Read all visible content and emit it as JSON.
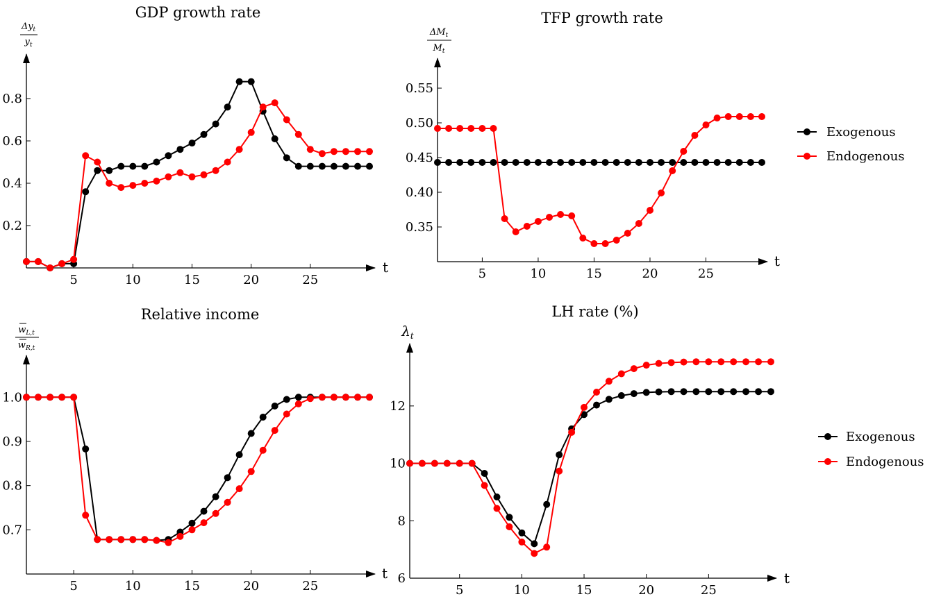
{
  "chart_data": [
    {
      "id": "gdp",
      "type": "line",
      "title": "GDP growth rate",
      "ylabel_num": "Δy",
      "ylabel_num_sub": "t",
      "ylabel_den": "y",
      "ylabel_den_sub": "t",
      "xlabel": "t",
      "xlim": [
        1,
        30
      ],
      "ylim": [
        0,
        1
      ],
      "xticks": [
        5,
        10,
        15,
        20,
        25
      ],
      "yticks": [
        0.2,
        0.4,
        0.6,
        0.8
      ],
      "ytick_labels": [
        "0.2",
        "0.4",
        "0.6",
        "0.8"
      ],
      "x": [
        1,
        2,
        3,
        4,
        5,
        6,
        7,
        8,
        9,
        10,
        11,
        12,
        13,
        14,
        15,
        16,
        17,
        18,
        19,
        20,
        21,
        22,
        23,
        24,
        25,
        26,
        27,
        28,
        29,
        30
      ],
      "series": [
        {
          "name": "Exogenous",
          "color": "#000000",
          "values": [
            0.03,
            0.03,
            0.0,
            0.02,
            0.02,
            0.36,
            0.46,
            0.46,
            0.48,
            0.48,
            0.48,
            0.5,
            0.53,
            0.56,
            0.59,
            0.63,
            0.68,
            0.76,
            0.88,
            0.88,
            0.74,
            0.61,
            0.52,
            0.48,
            0.48,
            0.48,
            0.48,
            0.48,
            0.48,
            0.48
          ]
        },
        {
          "name": "Endogenous",
          "color": "#ff0000",
          "values": [
            0.03,
            0.03,
            0.0,
            0.02,
            0.04,
            0.53,
            0.5,
            0.4,
            0.38,
            0.39,
            0.4,
            0.41,
            0.43,
            0.45,
            0.43,
            0.44,
            0.46,
            0.5,
            0.56,
            0.64,
            0.76,
            0.78,
            0.7,
            0.63,
            0.56,
            0.54,
            0.55,
            0.55,
            0.55,
            0.55
          ]
        }
      ]
    },
    {
      "id": "tfp",
      "type": "line",
      "title": "TFP growth rate",
      "ylabel_num": "ΔM",
      "ylabel_num_sub": "t",
      "ylabel_den": "M",
      "ylabel_den_sub": "t",
      "xlabel": "t",
      "xlim": [
        1,
        30
      ],
      "ylim": [
        0.3,
        0.59
      ],
      "xticks": [
        5,
        10,
        15,
        20,
        25
      ],
      "yticks": [
        0.35,
        0.4,
        0.45,
        0.5,
        0.55
      ],
      "ytick_labels": [
        "0.35",
        "0.40",
        "0.45",
        "0.50",
        "0.55"
      ],
      "x": [
        1,
        2,
        3,
        4,
        5,
        6,
        7,
        8,
        9,
        10,
        11,
        12,
        13,
        14,
        15,
        16,
        17,
        18,
        19,
        20,
        21,
        22,
        23,
        24,
        25,
        26,
        27,
        28,
        29,
        30
      ],
      "series": [
        {
          "name": "Exogenous",
          "color": "#000000",
          "values": [
            0.443,
            0.443,
            0.443,
            0.443,
            0.443,
            0.443,
            0.443,
            0.443,
            0.443,
            0.443,
            0.443,
            0.443,
            0.443,
            0.443,
            0.443,
            0.443,
            0.443,
            0.443,
            0.443,
            0.443,
            0.443,
            0.443,
            0.443,
            0.443,
            0.443,
            0.443,
            0.443,
            0.443,
            0.443,
            0.443
          ]
        },
        {
          "name": "Endogenous",
          "color": "#ff0000",
          "values": [
            0.492,
            0.492,
            0.492,
            0.492,
            0.492,
            0.492,
            0.362,
            0.343,
            0.351,
            0.358,
            0.364,
            0.368,
            0.366,
            0.334,
            0.326,
            0.326,
            0.331,
            0.341,
            0.355,
            0.374,
            0.399,
            0.431,
            0.459,
            0.482,
            0.497,
            0.507,
            0.509,
            0.509,
            0.509,
            0.509
          ]
        }
      ]
    },
    {
      "id": "relinc",
      "type": "line",
      "title": "Relative income",
      "ylabel_num": "w",
      "ylabel_num_sub": "L,t",
      "ylabel_den": "w",
      "ylabel_den_sub": "R,t",
      "xlabel": "t",
      "xlim": [
        1,
        30
      ],
      "ylim": [
        0.6,
        1.09
      ],
      "xticks": [
        5,
        10,
        15,
        20,
        25
      ],
      "yticks": [
        0.7,
        0.8,
        0.9,
        1.0
      ],
      "ytick_labels": [
        "0.7",
        "0.8",
        "0.9",
        "1.0"
      ],
      "x": [
        1,
        2,
        3,
        4,
        5,
        6,
        7,
        8,
        9,
        10,
        11,
        12,
        13,
        14,
        15,
        16,
        17,
        18,
        19,
        20,
        21,
        22,
        23,
        24,
        25,
        26,
        27,
        28,
        29,
        30
      ],
      "series": [
        {
          "name": "Exogenous",
          "color": "#000000",
          "values": [
            1.0,
            1.0,
            1.0,
            1.0,
            1.0,
            0.883,
            0.678,
            0.678,
            0.678,
            0.678,
            0.678,
            0.676,
            0.678,
            0.695,
            0.715,
            0.742,
            0.775,
            0.818,
            0.87,
            0.918,
            0.955,
            0.98,
            0.995,
            1.0,
            1.0,
            1.0,
            1.0,
            1.0,
            1.0,
            1.0
          ]
        },
        {
          "name": "Endogenous",
          "color": "#ff0000",
          "values": [
            1.0,
            1.0,
            1.0,
            1.0,
            1.0,
            0.733,
            0.678,
            0.678,
            0.678,
            0.678,
            0.678,
            0.676,
            0.671,
            0.685,
            0.7,
            0.716,
            0.737,
            0.762,
            0.793,
            0.832,
            0.88,
            0.925,
            0.962,
            0.985,
            0.997,
            1.0,
            1.0,
            1.0,
            1.0,
            1.0
          ]
        }
      ]
    },
    {
      "id": "lh",
      "type": "line",
      "title": "LH rate (%)",
      "ylabel_main": "λ",
      "ylabel_main_sub": "t",
      "xlabel": "t",
      "xlim": [
        1,
        30
      ],
      "ylim": [
        6,
        14.1
      ],
      "xticks": [
        5,
        10,
        15,
        20,
        25
      ],
      "yticks": [
        6,
        8,
        10,
        12
      ],
      "ytick_labels": [
        "6",
        "8",
        "10",
        "12"
      ],
      "x": [
        1,
        2,
        3,
        4,
        5,
        6,
        7,
        8,
        9,
        10,
        11,
        12,
        13,
        14,
        15,
        16,
        17,
        18,
        19,
        20,
        21,
        22,
        23,
        24,
        25,
        26,
        27,
        28,
        29,
        30
      ],
      "series": [
        {
          "name": "Exogenous",
          "color": "#000000",
          "values": [
            10,
            10,
            10,
            10,
            10,
            10,
            9.65,
            8.83,
            8.12,
            7.58,
            7.2,
            8.57,
            10.3,
            11.2,
            11.7,
            12.03,
            12.23,
            12.36,
            12.43,
            12.47,
            12.49,
            12.5,
            12.5,
            12.5,
            12.5,
            12.5,
            12.5,
            12.5,
            12.5,
            12.5
          ]
        },
        {
          "name": "Endogenous",
          "color": "#ff0000",
          "values": [
            10,
            10,
            10,
            10,
            10,
            10,
            9.23,
            8.43,
            7.79,
            7.26,
            6.86,
            7.08,
            9.73,
            11.08,
            11.95,
            12.48,
            12.86,
            13.12,
            13.3,
            13.42,
            13.48,
            13.51,
            13.53,
            13.54,
            13.54,
            13.54,
            13.54,
            13.54,
            13.54,
            13.54
          ]
        }
      ]
    }
  ],
  "legends": [
    {
      "items": [
        {
          "label": "Exogenous",
          "color": "#000000"
        },
        {
          "label": "Endogenous",
          "color": "#ff0000"
        }
      ]
    },
    {
      "items": [
        {
          "label": "Exogenous",
          "color": "#000000"
        },
        {
          "label": "Endogenous",
          "color": "#ff0000"
        }
      ]
    }
  ]
}
